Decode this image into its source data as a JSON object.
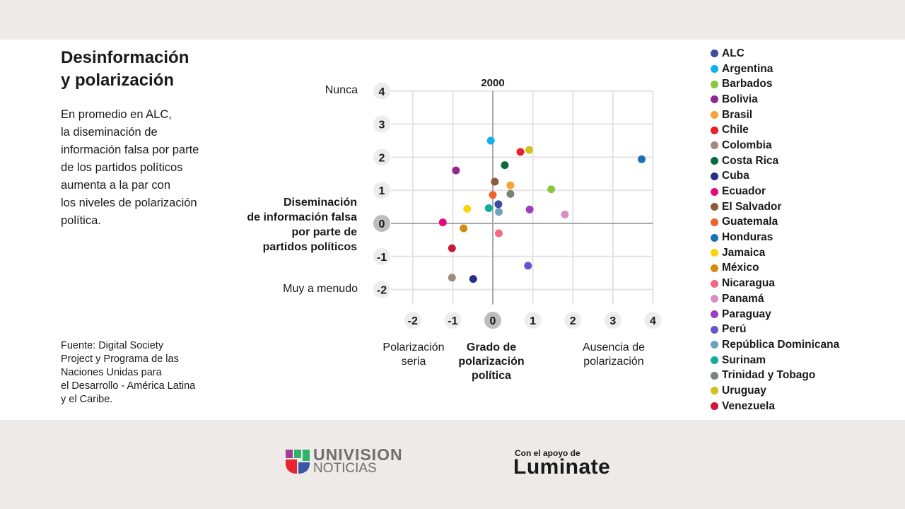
{
  "header": {
    "title_line1": "Desinformación",
    "title_line2": "y polarización"
  },
  "description": [
    "En promedio en ALC,",
    "la diseminación de",
    "información falsa por parte",
    "de los partidos políticos",
    "aumenta a la par con",
    "los niveles de polarización",
    "política."
  ],
  "source": [
    "Fuente: Digital Society",
    "Project y Programa de las",
    "Naciones Unidas para",
    "el Desarrollo - América Latina",
    "y el Caribe."
  ],
  "footer": {
    "univision_top": "UNIVISION",
    "univision_bottom": "NOTICIAS",
    "support_label": "Con el apoyo de",
    "luminate": "Luminate"
  },
  "chart_data": {
    "type": "scatter",
    "title": "2000",
    "ylabel": "Diseminación de información falsa por parte de partidos políticos",
    "ylabel_lines": [
      "Diseminación",
      "de información falsa",
      "por parte de",
      "partidos políticos"
    ],
    "y_end_labels": {
      "top": "Nunca",
      "bottom": "Muy a menudo"
    },
    "xlabel_lines": [
      "Grado de",
      "polarización",
      "política"
    ],
    "x_end_labels": {
      "left": [
        "Polarización",
        "seria"
      ],
      "right": [
        "Ausencia de",
        "polarización"
      ]
    },
    "xlim": [
      -2.5,
      4
    ],
    "ylim": [
      -2.45,
      4
    ],
    "xticks": [
      "-2",
      "-1",
      "0",
      "1",
      "2",
      "3",
      "4"
    ],
    "yticks": [
      "4",
      "3",
      "2",
      "1",
      "0",
      "-1",
      "-2"
    ],
    "grid": true,
    "legend_position": "right",
    "series": [
      {
        "name": "ALC",
        "color": "#3b4fa0",
        "x": 0.14,
        "y": 0.58
      },
      {
        "name": "Argentina",
        "color": "#10b0ee",
        "x": -0.05,
        "y": 2.5
      },
      {
        "name": "Barbados",
        "color": "#8cc63f",
        "x": 1.46,
        "y": 1.03
      },
      {
        "name": "Bolivia",
        "color": "#92278f",
        "x": -0.92,
        "y": 1.6
      },
      {
        "name": "Brasil",
        "color": "#f7a33a",
        "x": 0.44,
        "y": 1.15
      },
      {
        "name": "Chile",
        "color": "#e8202a",
        "x": 0.69,
        "y": 2.16
      },
      {
        "name": "Colombia",
        "color": "#a08a7c",
        "x": -1.02,
        "y": -1.64
      },
      {
        "name": "Costa Rica",
        "color": "#0b6b3a",
        "x": 0.3,
        "y": 1.76
      },
      {
        "name": "Cuba",
        "color": "#2a2f86",
        "x": -0.49,
        "y": -1.68
      },
      {
        "name": "Ecuador",
        "color": "#e5097f",
        "x": -1.25,
        "y": 0.03
      },
      {
        "name": "El Salvador",
        "color": "#8b5a36",
        "x": 0.05,
        "y": 1.26
      },
      {
        "name": "Guatemala",
        "color": "#f0642b",
        "x": 0.0,
        "y": 0.86
      },
      {
        "name": "Honduras",
        "color": "#1d70b7",
        "x": 3.72,
        "y": 1.94
      },
      {
        "name": "Jamaica",
        "color": "#fdd40c",
        "x": -0.64,
        "y": 0.44
      },
      {
        "name": "México",
        "color": "#d58b10",
        "x": -0.73,
        "y": -0.15
      },
      {
        "name": "Nicaragua",
        "color": "#f26a82",
        "x": 0.15,
        "y": -0.3
      },
      {
        "name": "Panamá",
        "color": "#d48fc8",
        "x": 1.8,
        "y": 0.27
      },
      {
        "name": "Paraguay",
        "color": "#9a3fbf",
        "x": 0.92,
        "y": 0.42
      },
      {
        "name": "Perú",
        "color": "#6258c8",
        "x": 0.88,
        "y": -1.28
      },
      {
        "name": "República Dominicana",
        "color": "#6ea3c0",
        "x": 0.15,
        "y": 0.35
      },
      {
        "name": "Surinam",
        "color": "#11ad98",
        "x": -0.1,
        "y": 0.46
      },
      {
        "name": "Trinidad y Tobago",
        "color": "#748676",
        "x": 0.44,
        "y": 0.89
      },
      {
        "name": "Uruguay",
        "color": "#d0c21a",
        "x": 0.91,
        "y": 2.22
      },
      {
        "name": "Venezuela",
        "color": "#c8193a",
        "x": -1.02,
        "y": -0.75
      }
    ]
  }
}
